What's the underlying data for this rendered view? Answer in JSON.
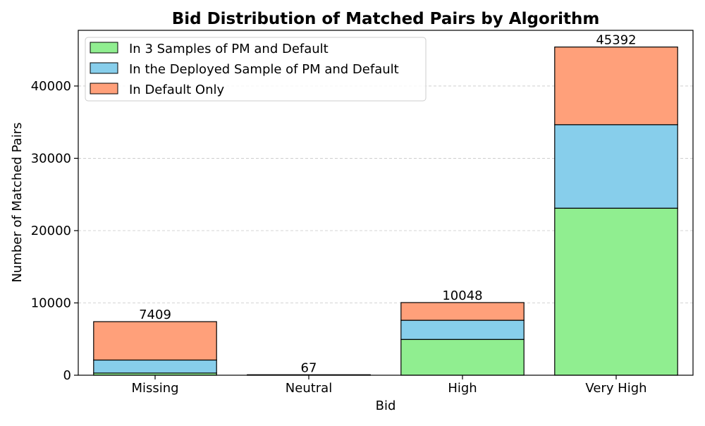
{
  "chart_data": {
    "type": "bar",
    "stacked": true,
    "title": "Bid Distribution of Matched Pairs by Algorithm",
    "xlabel": "Bid",
    "ylabel": "Number of Matched Pairs",
    "categories": [
      "Missing",
      "Neutral",
      "High",
      "Very High"
    ],
    "totals": [
      7409,
      67,
      10048,
      45392
    ],
    "series": [
      {
        "name": "In 3 Samples of PM and Default",
        "color": "#90ee90",
        "values": [
          300,
          20,
          4950,
          23100
        ]
      },
      {
        "name": "In the Deployed Sample of PM and Default",
        "color": "#87ceeb",
        "values": [
          1800,
          20,
          2650,
          11550
        ]
      },
      {
        "name": "In Default Only",
        "color": "#ffa07a",
        "values": [
          5309,
          27,
          2448,
          10742
        ]
      }
    ],
    "ylim": [
      0,
      47700
    ],
    "yticks": [
      0,
      10000,
      20000,
      30000,
      40000
    ],
    "grid": "y-dashed",
    "legend_position": "top-left"
  }
}
